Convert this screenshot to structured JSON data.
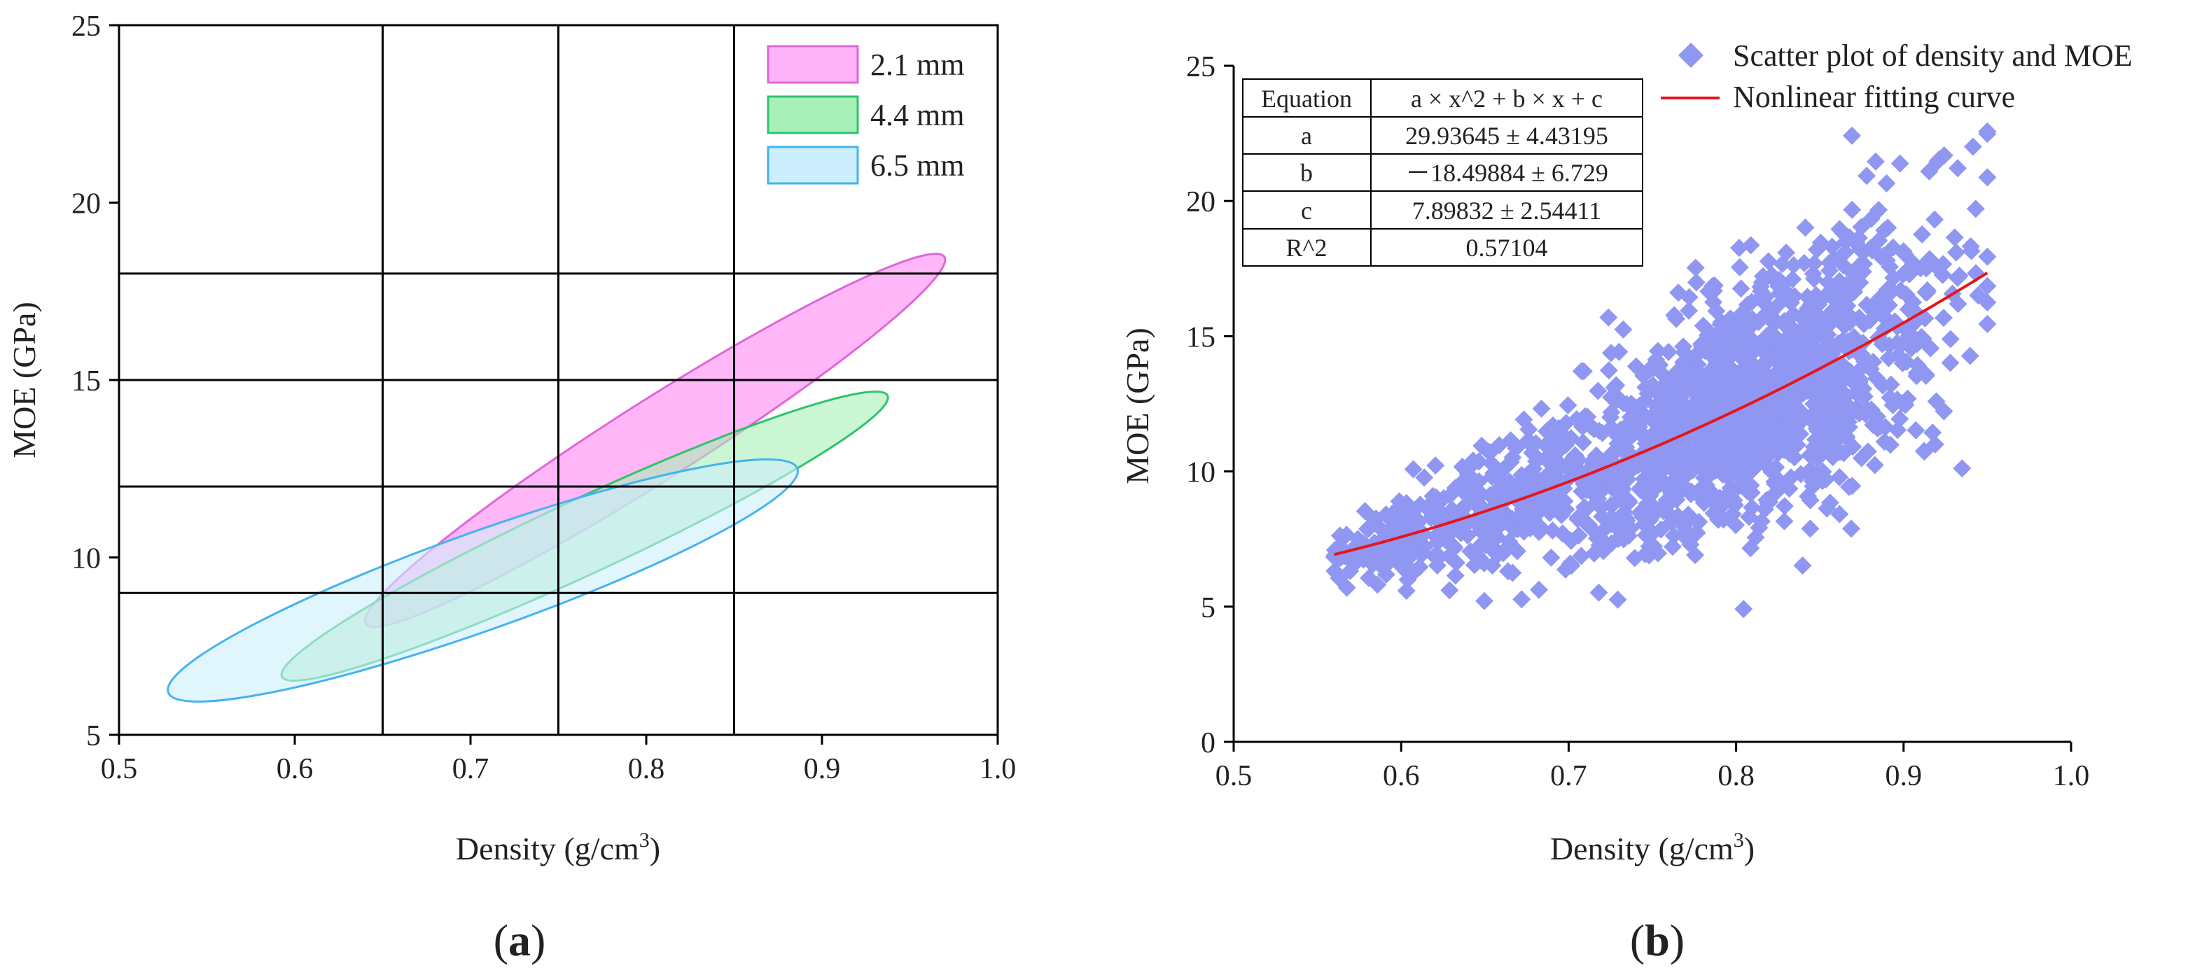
{
  "panel_labels": {
    "a": "a",
    "b": "b"
  },
  "chart_data": [
    {
      "panel": "a",
      "type": "ellipse-region",
      "xlabel_main": "Density (g/cm",
      "xlabel_sup": "3",
      "xlabel_close": ")",
      "ylabel": "MOE (GPa)",
      "xlim": [
        0.5,
        1.0
      ],
      "ylim": [
        5,
        25
      ],
      "xticks": [
        "0.5",
        "0.6",
        "0.7",
        "0.8",
        "0.9",
        "1.0"
      ],
      "yticks": [
        "5",
        "10",
        "15",
        "20",
        "25"
      ],
      "grid_x": [
        0.65,
        0.75,
        0.85
      ],
      "grid_y": [
        9,
        12,
        15,
        18
      ],
      "legend_position": "top-right",
      "series": [
        {
          "name": "2.1 mm",
          "fill": "#ffb3f7",
          "stroke": "#e066d9",
          "cx": 0.805,
          "cy": 13.3,
          "a": 0.195,
          "b": 1.12,
          "angle_deg": 32.4
        },
        {
          "name": "4.4 mm",
          "fill": "#a8f0b8",
          "stroke": "#2ec46a",
          "cx": 0.765,
          "cy": 10.6,
          "a": 0.19,
          "b": 1.05,
          "angle_deg": 24.9
        },
        {
          "name": "6.5 mm",
          "fill": "#cdeefc",
          "stroke": "#45b3ee",
          "cx": 0.707,
          "cy": 9.35,
          "a": 0.19,
          "b": 1.38,
          "angle_deg": 19.6
        }
      ]
    },
    {
      "panel": "b",
      "type": "scatter",
      "xlabel_main": "Density (g/cm",
      "xlabel_sup": "3",
      "xlabel_close": ")",
      "ylabel": "MOE (GPa)",
      "xlim": [
        0.5,
        1.0
      ],
      "ylim": [
        0,
        25
      ],
      "xticks": [
        "0.5",
        "0.6",
        "0.7",
        "0.8",
        "0.9",
        "1.0"
      ],
      "yticks": [
        "0",
        "5",
        "10",
        "15",
        "20",
        "25"
      ],
      "legend_position": "top-right",
      "series": [
        {
          "name": "Scatter plot of density and MOE",
          "type": "scatter",
          "color": "#8f97f3"
        },
        {
          "name": "Nonlinear fitting curve",
          "type": "line",
          "color": "#e8141b"
        }
      ],
      "fit": {
        "a": 29.93645,
        "b": -18.49884,
        "c": 7.89832,
        "x_range": [
          0.56,
          0.95
        ]
      },
      "scatter_model": {
        "n": 1700,
        "x_range": [
          0.56,
          0.95
        ],
        "x_mode": 0.8,
        "spread_min": 0.5,
        "spread_max": 2.6
      },
      "fit_table": {
        "rows": [
          [
            "Equation",
            "a × x^2 + b × x + c"
          ],
          [
            "a",
            "29.93645 ± 4.43195"
          ],
          [
            "b",
            "－18.49884 ± 6.729"
          ],
          [
            "c",
            "7.89832 ± 2.54411"
          ],
          [
            "R^2",
            "0.57104"
          ]
        ]
      }
    }
  ]
}
